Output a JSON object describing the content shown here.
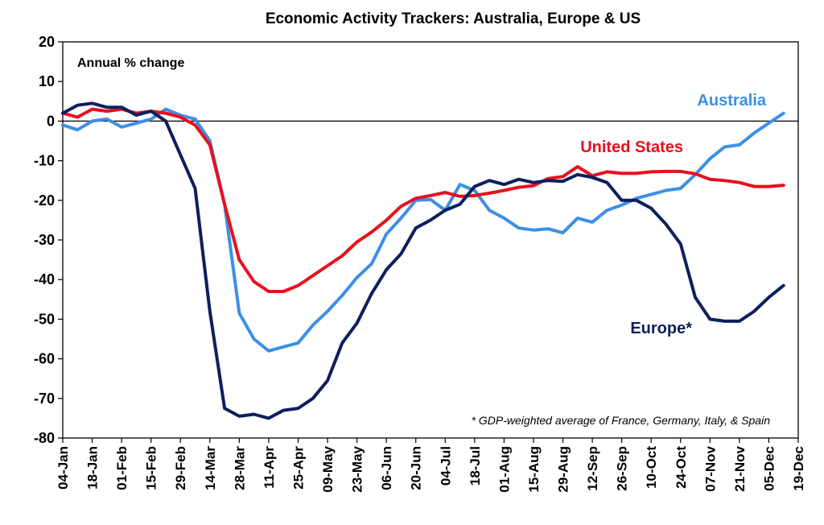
{
  "chart_data": {
    "type": "line",
    "title": "Economic Activity Trackers: Australia, Europe & US",
    "ylabel": "Annual % change",
    "xlabel": "",
    "ylim": [
      -80,
      20
    ],
    "yticks": [
      20,
      10,
      0,
      -10,
      -20,
      -30,
      -40,
      -50,
      -60,
      -70,
      -80
    ],
    "x_labels": [
      "04-Jan",
      "18-Jan",
      "01-Feb",
      "15-Feb",
      "29-Feb",
      "14-Mar",
      "28-Mar",
      "11-Apr",
      "25-Apr",
      "09-May",
      "23-May",
      "06-Jun",
      "20-Jun",
      "04-Jul",
      "18-Jul",
      "01-Aug",
      "15-Aug",
      "29-Aug",
      "12-Sep",
      "26-Sep",
      "10-Oct",
      "24-Oct",
      "07-Nov",
      "21-Nov",
      "05-Dec",
      "19-Dec"
    ],
    "footnote": "* GDP-weighted average of France, Germany, Italy, & Spain",
    "grid": false,
    "zero_line": true,
    "series": [
      {
        "name": "Australia",
        "color": "#3d8fe6",
        "points": [
          [
            0,
            -1
          ],
          [
            0.5,
            -2.2
          ],
          [
            1,
            0
          ],
          [
            1.5,
            0.5
          ],
          [
            2,
            -1.5
          ],
          [
            2.5,
            -0.5
          ],
          [
            3,
            0.5
          ],
          [
            3.5,
            3
          ],
          [
            4,
            1.5
          ],
          [
            4.5,
            0.5
          ],
          [
            5,
            -5
          ],
          [
            5.5,
            -21
          ],
          [
            6,
            -48.5
          ],
          [
            6.5,
            -55
          ],
          [
            7,
            -58
          ],
          [
            7.5,
            -57
          ],
          [
            8,
            -56
          ],
          [
            8.5,
            -51.5
          ],
          [
            9,
            -48
          ],
          [
            9.5,
            -44
          ],
          [
            10,
            -39.5
          ],
          [
            10.5,
            -36
          ],
          [
            11,
            -28.5
          ],
          [
            11.5,
            -24.5
          ],
          [
            12,
            -20
          ],
          [
            12.5,
            -19.8
          ],
          [
            13,
            -22.5
          ],
          [
            13.5,
            -16
          ],
          [
            14,
            -17.5
          ],
          [
            14.5,
            -22.5
          ],
          [
            15,
            -24.5
          ],
          [
            15.5,
            -27
          ],
          [
            16,
            -27.5
          ],
          [
            16.5,
            -27.2
          ],
          [
            17,
            -28.2
          ],
          [
            17.5,
            -24.5
          ],
          [
            18,
            -25.5
          ],
          [
            18.5,
            -22.5
          ],
          [
            19,
            -21.2
          ],
          [
            19.5,
            -19.5
          ],
          [
            20,
            -18.5
          ],
          [
            20.5,
            -17.5
          ],
          [
            21,
            -17
          ],
          [
            21.5,
            -13.5
          ],
          [
            22,
            -9.5
          ],
          [
            22.5,
            -6.5
          ],
          [
            23,
            -6
          ],
          [
            23.5,
            -3
          ],
          [
            24,
            -0.5
          ],
          [
            24.5,
            2
          ]
        ]
      },
      {
        "name": "United States",
        "color": "#e8101e",
        "points": [
          [
            0,
            2
          ],
          [
            0.5,
            1
          ],
          [
            1,
            3
          ],
          [
            1.5,
            2.5
          ],
          [
            2,
            3
          ],
          [
            2.5,
            2
          ],
          [
            3,
            2.5
          ],
          [
            3.5,
            2
          ],
          [
            4,
            1
          ],
          [
            4.5,
            -1
          ],
          [
            5,
            -6
          ],
          [
            5.5,
            -21
          ],
          [
            6,
            -35
          ],
          [
            6.5,
            -40.5
          ],
          [
            7,
            -43
          ],
          [
            7.5,
            -43
          ],
          [
            8,
            -41.5
          ],
          [
            8.5,
            -39
          ],
          [
            9,
            -36.5
          ],
          [
            9.5,
            -34
          ],
          [
            10,
            -30.5
          ],
          [
            10.5,
            -28
          ],
          [
            11,
            -25
          ],
          [
            11.5,
            -21.5
          ],
          [
            12,
            -19.5
          ],
          [
            12.5,
            -18.8
          ],
          [
            13,
            -18
          ],
          [
            13.5,
            -19
          ],
          [
            14,
            -18.8
          ],
          [
            14.5,
            -18.2
          ],
          [
            15,
            -17.5
          ],
          [
            15.5,
            -16.7
          ],
          [
            16,
            -16.3
          ],
          [
            16.5,
            -14.5
          ],
          [
            17,
            -14
          ],
          [
            17.5,
            -11.5
          ],
          [
            18,
            -13.8
          ],
          [
            18.5,
            -12.8
          ],
          [
            19,
            -13.2
          ],
          [
            19.5,
            -13.2
          ],
          [
            20,
            -12.8
          ],
          [
            20.5,
            -12.7
          ],
          [
            21,
            -12.7
          ],
          [
            21.5,
            -13.3
          ],
          [
            22,
            -14.7
          ],
          [
            22.5,
            -15
          ],
          [
            23,
            -15.5
          ],
          [
            23.5,
            -16.5
          ],
          [
            24,
            -16.5
          ],
          [
            24.5,
            -16.2
          ]
        ]
      },
      {
        "name": "Europe*",
        "color": "#0d1f5c",
        "points": [
          [
            0,
            2
          ],
          [
            0.5,
            4
          ],
          [
            1,
            4.5
          ],
          [
            1.5,
            3.5
          ],
          [
            2,
            3.5
          ],
          [
            2.5,
            1.5
          ],
          [
            3,
            2.5
          ],
          [
            3.5,
            0
          ],
          [
            4,
            -8.5
          ],
          [
            4.5,
            -17
          ],
          [
            5,
            -48
          ],
          [
            5.5,
            -72.5
          ],
          [
            6,
            -74.5
          ],
          [
            6.5,
            -74
          ],
          [
            7,
            -75
          ],
          [
            7.5,
            -73
          ],
          [
            8,
            -72.5
          ],
          [
            8.5,
            -70
          ],
          [
            9,
            -65.5
          ],
          [
            9.5,
            -56
          ],
          [
            10,
            -51
          ],
          [
            10.5,
            -43.5
          ],
          [
            11,
            -37.5
          ],
          [
            11.5,
            -33.5
          ],
          [
            12,
            -27
          ],
          [
            12.5,
            -25
          ],
          [
            13,
            -22.5
          ],
          [
            13.5,
            -21
          ],
          [
            14,
            -16.5
          ],
          [
            14.5,
            -15
          ],
          [
            15,
            -16
          ],
          [
            15.5,
            -14.7
          ],
          [
            16,
            -15.5
          ],
          [
            16.5,
            -15
          ],
          [
            17,
            -15.2
          ],
          [
            17.5,
            -13.5
          ],
          [
            18,
            -14.2
          ],
          [
            18.5,
            -15.5
          ],
          [
            19,
            -20
          ],
          [
            19.5,
            -20
          ],
          [
            20,
            -22
          ],
          [
            20.5,
            -26
          ],
          [
            21,
            -31
          ],
          [
            21.5,
            -44.5
          ],
          [
            22,
            -50
          ],
          [
            22.5,
            -50.5
          ],
          [
            23,
            -50.5
          ],
          [
            23.5,
            -48
          ],
          [
            24,
            -44.5
          ],
          [
            24.5,
            -41.5
          ]
        ]
      }
    ]
  }
}
